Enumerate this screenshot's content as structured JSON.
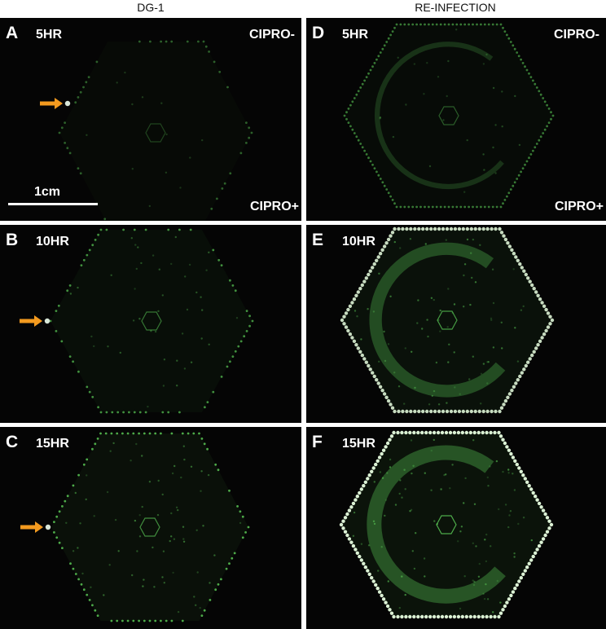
{
  "figure": {
    "columns": [
      {
        "title": "DG-1"
      },
      {
        "title": "RE-INFECTION"
      }
    ],
    "panels": [
      {
        "letter": "A",
        "time": "5HR",
        "top_label": "CIPRO-",
        "bottom_label": "CIPRO+",
        "scale_label": "1cm",
        "arrow": true,
        "condition": "dg1",
        "intensity": 0.15
      },
      {
        "letter": "B",
        "time": "10HR",
        "arrow": true,
        "condition": "dg1",
        "intensity": 0.55
      },
      {
        "letter": "C",
        "time": "15HR",
        "arrow": true,
        "condition": "dg1",
        "intensity": 0.75
      },
      {
        "letter": "D",
        "time": "5HR",
        "top_label": "CIPRO-",
        "bottom_label": "CIPRO+",
        "arrow": false,
        "condition": "reinfection",
        "intensity": 0.35
      },
      {
        "letter": "E",
        "time": "10HR",
        "arrow": false,
        "condition": "reinfection",
        "intensity": 0.85
      },
      {
        "letter": "F",
        "time": "15HR",
        "arrow": false,
        "condition": "reinfection",
        "intensity": 1.0
      }
    ],
    "colors": {
      "fluorescence": "#5fd35a",
      "arrow": "#f39a1f",
      "background": "#050505"
    }
  }
}
